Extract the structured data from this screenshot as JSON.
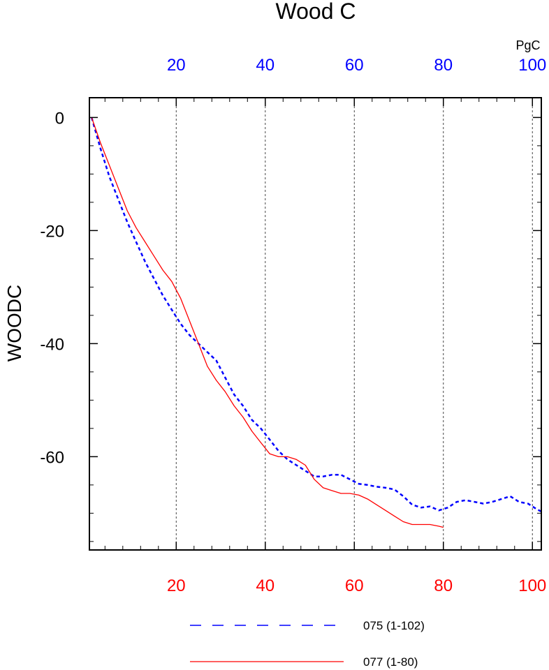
{
  "chart_data": {
    "type": "line",
    "title": "Wood C",
    "ylabel": "WOODC",
    "top_axis_unit": "PgC",
    "xlim": [
      0.5,
      102
    ],
    "ylim": [
      -76.5,
      3.5
    ],
    "grid": "vertical dashed at x ticks",
    "legend_position": "bottom",
    "x_ticks": [
      "20",
      "40",
      "60",
      "80",
      "100"
    ],
    "y_ticks": [
      "0",
      "-20",
      "-40",
      "-60"
    ],
    "colors": {
      "series_075": "#0000ff",
      "series_077": "#ff0000",
      "axis": "#000000"
    },
    "series": [
      {
        "name": "075 (1-102)",
        "style": "dashed",
        "color": "#0000ff",
        "x": [
          1,
          3,
          5,
          7,
          9,
          11,
          13,
          15,
          17,
          19,
          21,
          23,
          25,
          27,
          29,
          31,
          33,
          35,
          37,
          39,
          41,
          43,
          45,
          47,
          49,
          51,
          53,
          55,
          57,
          59,
          61,
          63,
          65,
          67,
          69,
          71,
          73,
          75,
          77,
          79,
          81,
          83,
          85,
          87,
          89,
          91,
          93,
          95,
          97,
          99,
          101,
          102
        ],
        "y": [
          0,
          -5.5,
          -10.5,
          -14.5,
          -18.5,
          -22,
          -25.5,
          -28.5,
          -31.5,
          -34,
          -36.5,
          -38.5,
          -40,
          -41.5,
          -43,
          -46,
          -49,
          -51,
          -53.5,
          -55,
          -57,
          -59,
          -60.5,
          -61.5,
          -62.5,
          -63.5,
          -63.5,
          -63.2,
          -63.2,
          -64,
          -64.8,
          -65,
          -65.3,
          -65.5,
          -65.8,
          -67,
          -68.5,
          -69,
          -68.8,
          -69.5,
          -69,
          -68,
          -67.7,
          -68,
          -68.3,
          -68,
          -67.5,
          -67,
          -68,
          -68.3,
          -69.3,
          -69.7
        ]
      },
      {
        "name": "077 (1-80)",
        "style": "solid",
        "color": "#ff0000",
        "x": [
          1,
          3,
          5,
          7,
          9,
          11,
          13,
          15,
          17,
          19,
          21,
          23,
          25,
          27,
          29,
          31,
          33,
          35,
          37,
          39,
          41,
          43,
          45,
          47,
          49,
          51,
          53,
          55,
          57,
          59,
          61,
          63,
          65,
          67,
          69,
          71,
          73,
          75,
          77,
          79,
          80
        ],
        "y": [
          0,
          -4.5,
          -8.5,
          -12.5,
          -16.5,
          -19.5,
          -22,
          -24.5,
          -27,
          -29,
          -32,
          -36,
          -40,
          -44,
          -46.5,
          -48.5,
          -51,
          -53,
          -55.5,
          -57.5,
          -59.5,
          -60,
          -60,
          -60.5,
          -61.5,
          -64,
          -65.5,
          -66,
          -66.5,
          -66.5,
          -66.8,
          -67.5,
          -68.5,
          -69.5,
          -70.5,
          -71.5,
          -72,
          -72,
          -72,
          -72.3,
          -72.5
        ]
      }
    ]
  }
}
